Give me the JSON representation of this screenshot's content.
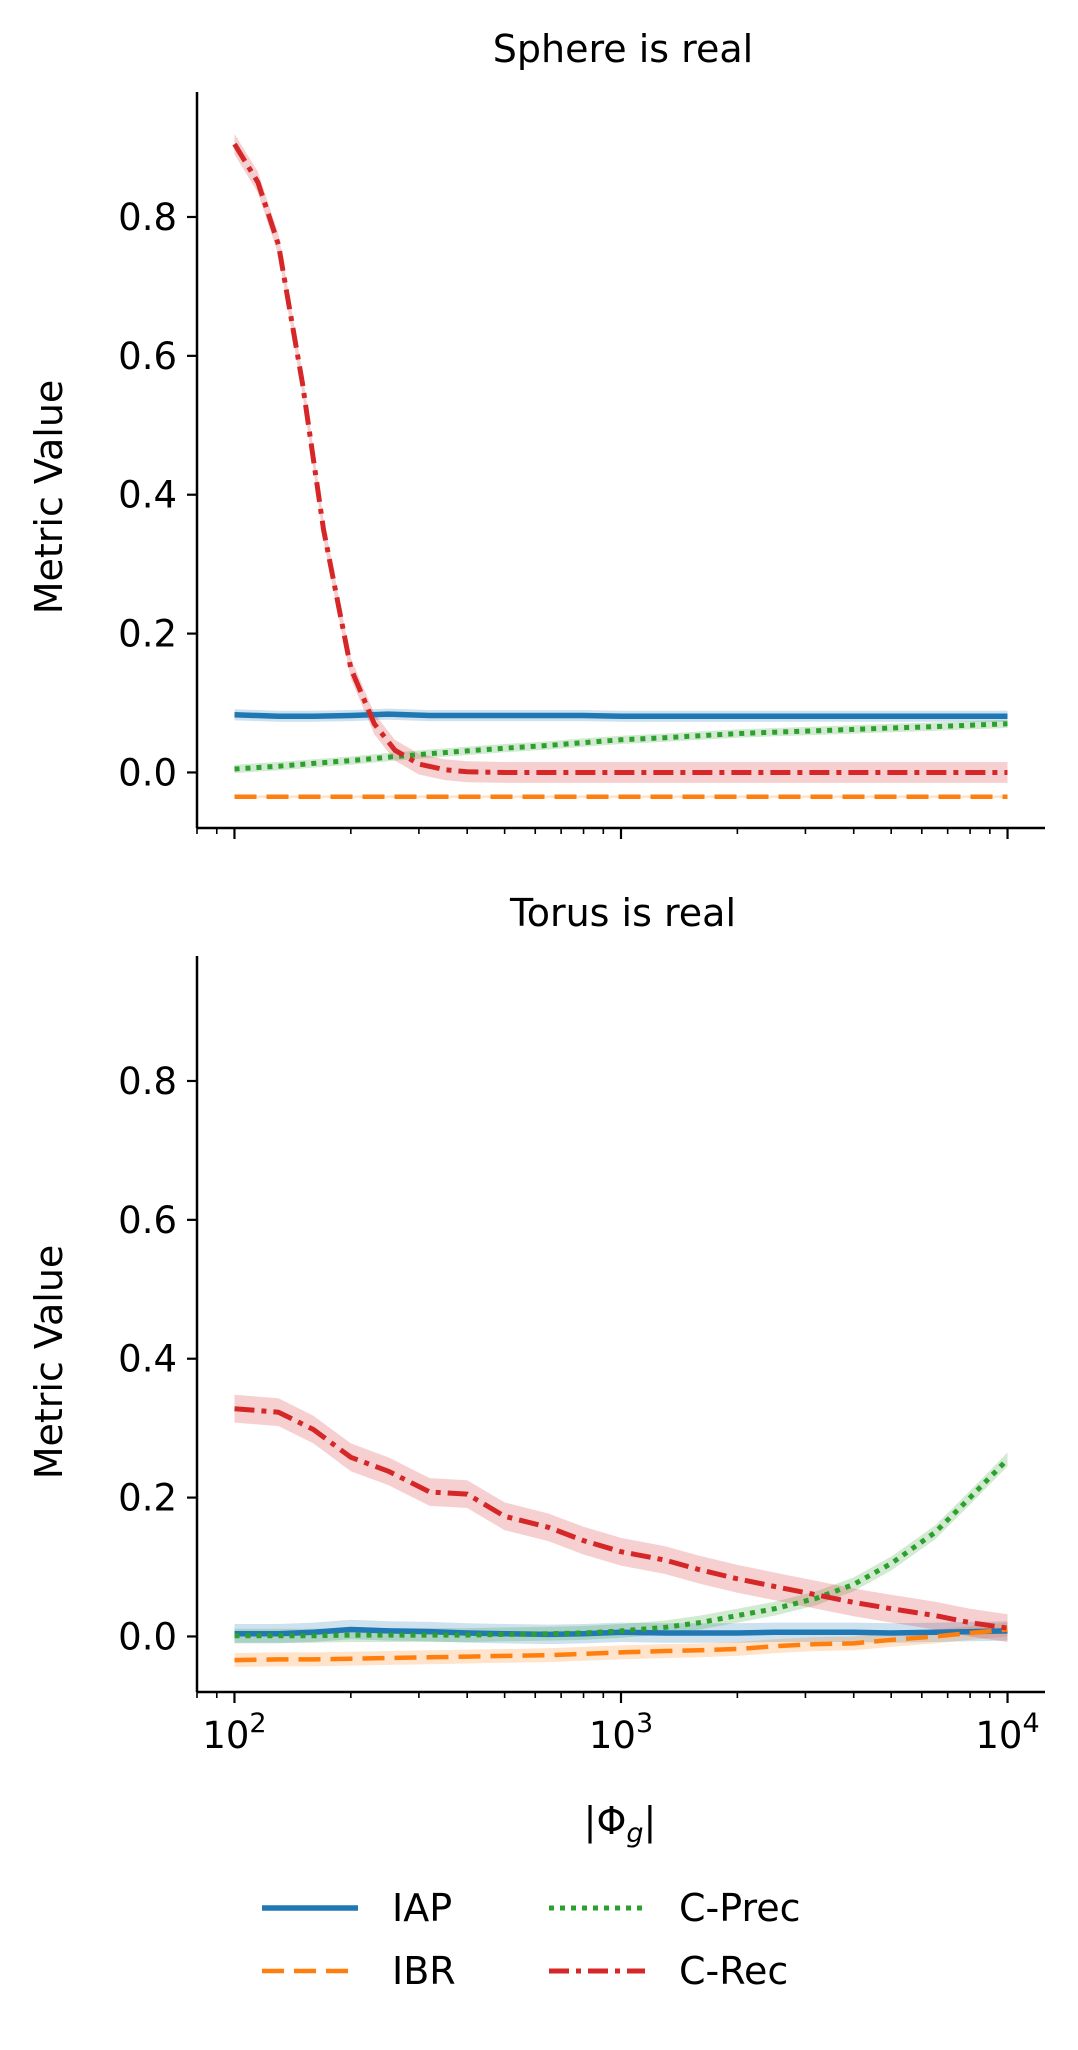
{
  "chart_data": [
    {
      "type": "line",
      "title": "Sphere is real",
      "xlabel": "",
      "ylabel": "Metric Value",
      "xscale": "log",
      "xlim": [
        80,
        12500
      ],
      "ylim": [
        -0.08,
        0.98
      ],
      "yticks": [
        {
          "value": 0.0,
          "label": "0.0"
        },
        {
          "value": 0.2,
          "label": "0.2"
        },
        {
          "value": 0.4,
          "label": "0.4"
        },
        {
          "value": 0.6,
          "label": "0.6"
        },
        {
          "value": 0.8,
          "label": "0.8"
        }
      ],
      "xticks": [],
      "grid": false,
      "series": [
        {
          "name": "IAP",
          "color": "#1f77b4",
          "dash": "solid",
          "band": 0.008,
          "x": [
            100,
            130,
            160,
            200,
            250,
            320,
            400,
            500,
            650,
            800,
            1000,
            1300,
            1600,
            2000,
            2500,
            3200,
            4000,
            5000,
            6500,
            8000,
            10000
          ],
          "y": [
            0.083,
            0.081,
            0.081,
            0.082,
            0.084,
            0.082,
            0.082,
            0.082,
            0.082,
            0.082,
            0.081,
            0.081,
            0.081,
            0.081,
            0.081,
            0.081,
            0.081,
            0.081,
            0.081,
            0.081,
            0.081
          ]
        },
        {
          "name": "IBR",
          "color": "#ff7f0e",
          "dash": "dashed",
          "band": 0.002,
          "x": [
            100,
            200,
            400,
            800,
            1600,
            3200,
            6400,
            10000
          ],
          "y": [
            -0.035,
            -0.035,
            -0.035,
            -0.035,
            -0.035,
            -0.035,
            -0.035,
            -0.035
          ]
        },
        {
          "name": "C-Prec",
          "color": "#2ca02c",
          "dash": "dotted",
          "band": 0.006,
          "x": [
            100,
            130,
            160,
            200,
            250,
            320,
            400,
            500,
            650,
            800,
            1000,
            1300,
            1600,
            2000,
            2500,
            3200,
            4000,
            5000,
            6500,
            8000,
            10000
          ],
          "y": [
            0.005,
            0.009,
            0.013,
            0.017,
            0.022,
            0.027,
            0.031,
            0.035,
            0.039,
            0.043,
            0.047,
            0.05,
            0.053,
            0.056,
            0.058,
            0.06,
            0.062,
            0.064,
            0.066,
            0.068,
            0.07
          ]
        },
        {
          "name": "C-Rec",
          "color": "#d62728",
          "dash": "dashdot",
          "band": 0.015,
          "x": [
            100,
            115,
            130,
            150,
            170,
            200,
            230,
            260,
            300,
            350,
            400,
            500,
            700,
            1000,
            2000,
            4000,
            10000
          ],
          "y": [
            0.905,
            0.85,
            0.76,
            0.56,
            0.35,
            0.15,
            0.07,
            0.032,
            0.012,
            0.004,
            0.001,
            0.0,
            0.0,
            0.0,
            0.0,
            0.0,
            0.0
          ]
        }
      ]
    },
    {
      "type": "line",
      "title": "Torus is real",
      "xlabel": "|Φ_g|",
      "ylabel": "Metric Value",
      "xscale": "log",
      "xlim": [
        80,
        12500
      ],
      "ylim": [
        -0.08,
        0.98
      ],
      "yticks": [
        {
          "value": 0.0,
          "label": "0.0"
        },
        {
          "value": 0.2,
          "label": "0.2"
        },
        {
          "value": 0.4,
          "label": "0.4"
        },
        {
          "value": 0.6,
          "label": "0.6"
        },
        {
          "value": 0.8,
          "label": "0.8"
        }
      ],
      "xticks": [
        {
          "value": 100,
          "base": "10",
          "exp": "2"
        },
        {
          "value": 1000,
          "base": "10",
          "exp": "3"
        },
        {
          "value": 10000,
          "base": "10",
          "exp": "4"
        }
      ],
      "grid": false,
      "series": [
        {
          "name": "IAP",
          "color": "#1f77b4",
          "dash": "solid",
          "band": 0.014,
          "x": [
            100,
            130,
            160,
            200,
            250,
            320,
            400,
            500,
            650,
            800,
            1000,
            1300,
            1600,
            2000,
            2500,
            3200,
            4000,
            5000,
            6500,
            8000,
            10000
          ],
          "y": [
            0.004,
            0.004,
            0.006,
            0.01,
            0.008,
            0.007,
            0.005,
            0.004,
            0.003,
            0.004,
            0.006,
            0.005,
            0.005,
            0.005,
            0.006,
            0.006,
            0.006,
            0.005,
            0.006,
            0.007,
            0.008
          ]
        },
        {
          "name": "IBR",
          "color": "#ff7f0e",
          "dash": "dashed",
          "band": 0.01,
          "x": [
            100,
            130,
            160,
            200,
            250,
            320,
            400,
            500,
            650,
            800,
            1000,
            1300,
            1600,
            2000,
            2500,
            3200,
            4000,
            5000,
            6500,
            8000,
            10000
          ],
          "y": [
            -0.034,
            -0.033,
            -0.033,
            -0.032,
            -0.031,
            -0.03,
            -0.029,
            -0.028,
            -0.027,
            -0.025,
            -0.023,
            -0.021,
            -0.02,
            -0.018,
            -0.014,
            -0.011,
            -0.01,
            -0.005,
            0.0,
            0.005,
            0.01
          ]
        },
        {
          "name": "C-Prec",
          "color": "#2ca02c",
          "dash": "dotted",
          "band": 0.01,
          "x": [
            100,
            130,
            160,
            200,
            250,
            320,
            400,
            500,
            650,
            800,
            1000,
            1300,
            1600,
            2000,
            2500,
            3200,
            4000,
            5000,
            6500,
            8000,
            10000
          ],
          "y": [
            0.001,
            0.001,
            0.001,
            0.002,
            0.002,
            0.002,
            0.002,
            0.003,
            0.004,
            0.005,
            0.008,
            0.013,
            0.02,
            0.03,
            0.04,
            0.055,
            0.075,
            0.105,
            0.15,
            0.2,
            0.255
          ]
        },
        {
          "name": "C-Rec",
          "color": "#d62728",
          "dash": "dashdot",
          "band": 0.02,
          "x": [
            100,
            130,
            160,
            200,
            250,
            320,
            400,
            500,
            650,
            800,
            1000,
            1300,
            1600,
            2000,
            2500,
            3200,
            4000,
            5000,
            6500,
            8000,
            10000
          ],
          "y": [
            0.328,
            0.323,
            0.298,
            0.258,
            0.238,
            0.208,
            0.205,
            0.173,
            0.157,
            0.138,
            0.122,
            0.11,
            0.096,
            0.083,
            0.072,
            0.06,
            0.049,
            0.04,
            0.03,
            0.02,
            0.012
          ]
        }
      ]
    }
  ],
  "legend": {
    "placement": "bottom-center",
    "entries": [
      {
        "label": "IAP",
        "color": "#1f77b4",
        "dash": "solid"
      },
      {
        "label": "C-Prec",
        "color": "#2ca02c",
        "dash": "dotted"
      },
      {
        "label": "IBR",
        "color": "#ff7f0e",
        "dash": "dashed"
      },
      {
        "label": "C-Rec",
        "color": "#d62728",
        "dash": "dashdot"
      }
    ]
  }
}
